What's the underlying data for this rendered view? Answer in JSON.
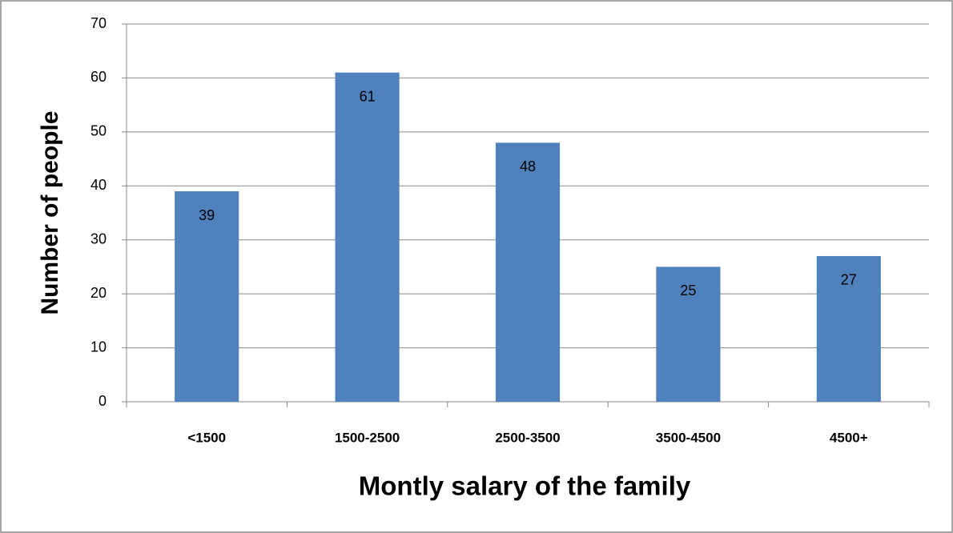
{
  "chart_data": {
    "type": "bar",
    "xlabel": "Montly salary of the family",
    "ylabel": "Number of people",
    "categories": [
      "<1500",
      "1500-2500",
      "2500-3500",
      "3500-4500",
      "4500+"
    ],
    "values": [
      39,
      61,
      48,
      25,
      27
    ],
    "color": "#4f81bd",
    "ylim": [
      0,
      70
    ],
    "yticks": [
      0,
      10,
      20,
      30,
      40,
      50,
      60,
      70
    ],
    "grid": true,
    "data_labels": true
  }
}
